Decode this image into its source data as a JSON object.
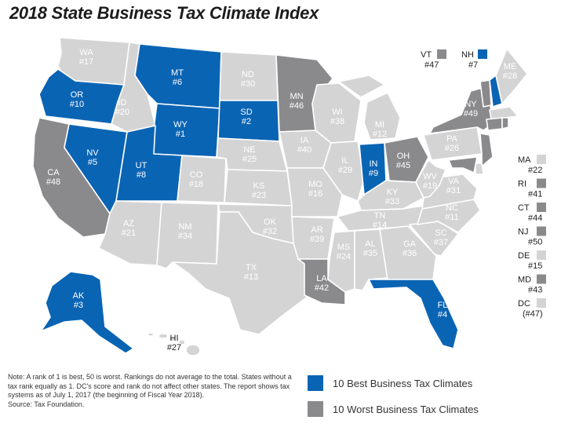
{
  "title": "2018 State Business Tax Climate Index",
  "colors": {
    "best": "#0a64b4",
    "worst": "#8a8a8d",
    "other": "#d4d4d4",
    "ocean": "#ffffff"
  },
  "states": {
    "WA": {
      "abbr": "WA",
      "rank": "#17"
    },
    "OR": {
      "abbr": "OR",
      "rank": "#10"
    },
    "CA": {
      "abbr": "CA",
      "rank": "#48"
    },
    "NV": {
      "abbr": "NV",
      "rank": "#5"
    },
    "ID": {
      "abbr": "ID",
      "rank": "#20"
    },
    "MT": {
      "abbr": "MT",
      "rank": "#6"
    },
    "WY": {
      "abbr": "WY",
      "rank": "#1"
    },
    "UT": {
      "abbr": "UT",
      "rank": "#8"
    },
    "AZ": {
      "abbr": "AZ",
      "rank": "#21"
    },
    "CO": {
      "abbr": "CO",
      "rank": "#18"
    },
    "NM": {
      "abbr": "NM",
      "rank": "#34"
    },
    "ND": {
      "abbr": "ND",
      "rank": "#30"
    },
    "SD": {
      "abbr": "SD",
      "rank": "#2"
    },
    "NE": {
      "abbr": "NE",
      "rank": "#25"
    },
    "KS": {
      "abbr": "KS",
      "rank": "#23"
    },
    "OK": {
      "abbr": "OK",
      "rank": "#32"
    },
    "TX": {
      "abbr": "TX",
      "rank": "#13"
    },
    "MN": {
      "abbr": "MN",
      "rank": "#46"
    },
    "IA": {
      "abbr": "IA",
      "rank": "#40"
    },
    "MO": {
      "abbr": "MO",
      "rank": "#16"
    },
    "AR": {
      "abbr": "AR",
      "rank": "#39"
    },
    "LA": {
      "abbr": "LA",
      "rank": "#42"
    },
    "WI": {
      "abbr": "WI",
      "rank": "#38"
    },
    "IL": {
      "abbr": "IL",
      "rank": "#29"
    },
    "MI": {
      "abbr": "MI",
      "rank": "#12"
    },
    "IN": {
      "abbr": "IN",
      "rank": "#9"
    },
    "OH": {
      "abbr": "OH",
      "rank": "#45"
    },
    "KY": {
      "abbr": "KY",
      "rank": "#33"
    },
    "TN": {
      "abbr": "TN",
      "rank": "#14"
    },
    "MS": {
      "abbr": "MS",
      "rank": "#24"
    },
    "AL": {
      "abbr": "AL",
      "rank": "#35"
    },
    "GA": {
      "abbr": "GA",
      "rank": "#36"
    },
    "FL": {
      "abbr": "FL",
      "rank": "#4"
    },
    "SC": {
      "abbr": "SC",
      "rank": "#37"
    },
    "NC": {
      "abbr": "NC",
      "rank": "#11"
    },
    "VA": {
      "abbr": "VA",
      "rank": "#31"
    },
    "WV": {
      "abbr": "WV",
      "rank": "#19"
    },
    "PA": {
      "abbr": "PA",
      "rank": "#26"
    },
    "NY": {
      "abbr": "NY",
      "rank": "#49"
    },
    "ME": {
      "abbr": "ME",
      "rank": "#28"
    },
    "AK": {
      "abbr": "AK",
      "rank": "#3"
    },
    "HI": {
      "abbr": "HI",
      "rank": "#27"
    }
  },
  "top_insets": {
    "VT": {
      "abbr": "VT",
      "rank": "#47"
    },
    "NH": {
      "abbr": "NH",
      "rank": "#7"
    }
  },
  "side_list": [
    {
      "abbr": "MA",
      "rank": "#22",
      "cat": "other"
    },
    {
      "abbr": "RI",
      "rank": "#41",
      "cat": "worst"
    },
    {
      "abbr": "CT",
      "rank": "#44",
      "cat": "worst"
    },
    {
      "abbr": "NJ",
      "rank": "#50",
      "cat": "worst"
    },
    {
      "abbr": "DE",
      "rank": "#15",
      "cat": "other"
    },
    {
      "abbr": "MD",
      "rank": "#43",
      "cat": "worst"
    },
    {
      "abbr": "DC",
      "rank": "(#47)",
      "cat": "other"
    }
  ],
  "note": "Note: A rank of 1 is best, 50 is worst. Rankings do not average to the total. States without a tax rank equally as 1. DC's score and rank do not affect other states. The report shows tax systems as of July 1, 2017 (the beginning of Fiscal Year 2018).",
  "source": "Source: Tax Foundation.",
  "legend": {
    "best": "10 Best Business Tax Climates",
    "worst": "10 Worst Business Tax Climates"
  }
}
